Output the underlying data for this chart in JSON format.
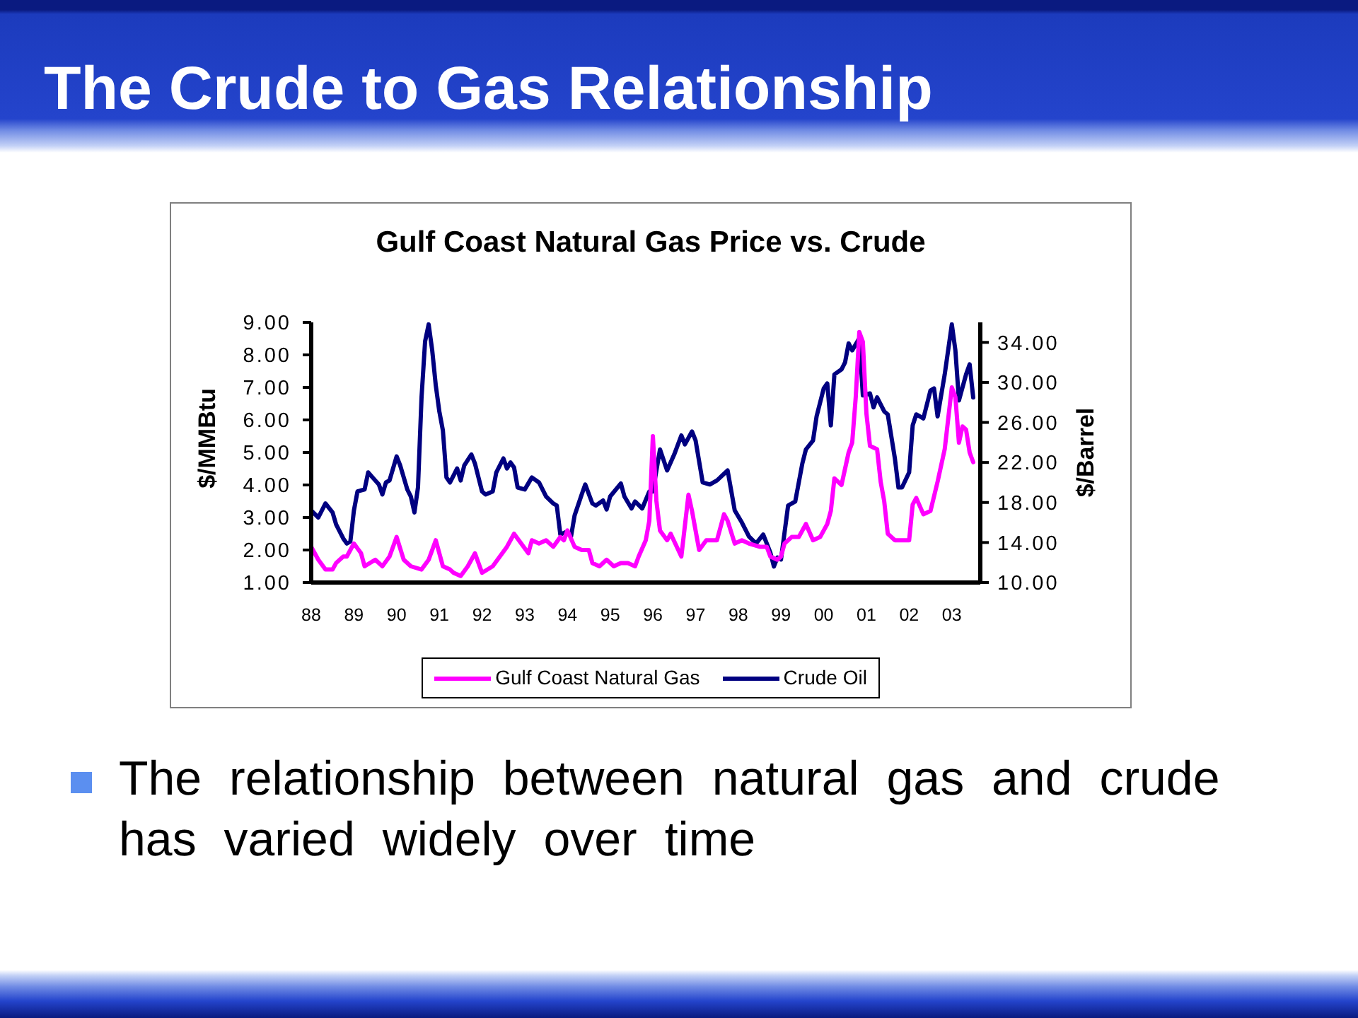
{
  "chart_data": {
    "type": "line",
    "title": "The Crude to Gas Relationship",
    "subtitle": "Gulf Coast Natural Gas Price vs. Crude",
    "ylabel": "$/MMBtu",
    "y2label": "$/Barrel",
    "annotations": [
      "The relationship between natural gas and crude has varied widely over time"
    ],
    "xlim": [
      "1988-01",
      "2003-09"
    ],
    "xticks": [
      {
        "value": "1988",
        "label": "88"
      },
      {
        "value": "1989",
        "label": "89"
      },
      {
        "value": "1990",
        "label": "90"
      },
      {
        "value": "1991",
        "label": "91"
      },
      {
        "value": "1992",
        "label": "92"
      },
      {
        "value": "1993",
        "label": "93"
      },
      {
        "value": "1994",
        "label": "94"
      },
      {
        "value": "1995",
        "label": "95"
      },
      {
        "value": "1996",
        "label": "96"
      },
      {
        "value": "1997",
        "label": "97"
      },
      {
        "value": "1998",
        "label": "98"
      },
      {
        "value": "1999",
        "label": "99"
      },
      {
        "value": "2000",
        "label": "00"
      },
      {
        "value": "2001",
        "label": "01"
      },
      {
        "value": "2002",
        "label": "02"
      },
      {
        "value": "2003",
        "label": "03"
      }
    ],
    "ylim": [
      1,
      9
    ],
    "yticks": [
      {
        "value": 1,
        "label": "1.00"
      },
      {
        "value": 2,
        "label": "2.00"
      },
      {
        "value": 3,
        "label": "3.00"
      },
      {
        "value": 4,
        "label": "4.00"
      },
      {
        "value": 5,
        "label": "5.00"
      },
      {
        "value": 6,
        "label": "6.00"
      },
      {
        "value": 7,
        "label": "7.00"
      },
      {
        "value": 8,
        "label": "8.00"
      },
      {
        "value": 9,
        "label": "9.00"
      }
    ],
    "y2lim": [
      10,
      36
    ],
    "y2ticks": [
      {
        "value": 10,
        "label": "10.00"
      },
      {
        "value": 14,
        "label": "14.00"
      },
      {
        "value": 18,
        "label": "18.00"
      },
      {
        "value": 22,
        "label": "22.00"
      },
      {
        "value": 26,
        "label": "26.00"
      },
      {
        "value": 30,
        "label": "30.00"
      },
      {
        "value": 34,
        "label": "34.00"
      }
    ],
    "legend": "bottom",
    "series": [
      {
        "name": "Gulf Coast Natural Gas",
        "color": "#ff00ff",
        "x": [
          "1988-01",
          "1988-03",
          "1988-05",
          "1988-07",
          "1988-08",
          "1988-10",
          "1988-11",
          "1989-01",
          "1989-03",
          "1989-04",
          "1989-07",
          "1989-09",
          "1989-11",
          "1990-01",
          "1990-03",
          "1990-05",
          "1990-08",
          "1990-10",
          "1990-12",
          "1991-02",
          "1991-04",
          "1991-05",
          "1991-07",
          "1991-09",
          "1991-11",
          "1992-01",
          "1992-04",
          "1992-06",
          "1992-08",
          "1992-10",
          "1992-12",
          "1993-02",
          "1993-03",
          "1993-05",
          "1993-07",
          "1993-09",
          "1993-11",
          "1993-12",
          "1994-01",
          "1994-03",
          "1994-05",
          "1994-07",
          "1994-08",
          "1994-10",
          "1994-12",
          "1995-02",
          "1995-04",
          "1995-06",
          "1995-08",
          "1995-09",
          "1995-11",
          "1995-12",
          "1996-01",
          "1996-02",
          "1996-03",
          "1996-05",
          "1996-06",
          "1996-09",
          "1996-11",
          "1996-12",
          "1997-02",
          "1997-04",
          "1997-07",
          "1997-09",
          "1997-10",
          "1997-12",
          "1998-02",
          "1998-04",
          "1998-07",
          "1998-09",
          "1998-10",
          "1998-12",
          "1999-01",
          "1999-02",
          "1999-04",
          "1999-06",
          "1999-08",
          "1999-10",
          "1999-12",
          "2000-02",
          "2000-03",
          "2000-04",
          "2000-06",
          "2000-08",
          "2000-09",
          "2000-10",
          "2000-11",
          "2000-12",
          "2001-01",
          "2001-02",
          "2001-04",
          "2001-05",
          "2001-06",
          "2001-07",
          "2001-09",
          "2001-11",
          "2002-01",
          "2002-02",
          "2002-03",
          "2002-05",
          "2002-07",
          "2002-09",
          "2002-11",
          "2003-01",
          "2003-02",
          "2003-03",
          "2003-04",
          "2003-05",
          "2003-06",
          "2003-07"
        ],
        "values": [
          2.1,
          1.7,
          1.4,
          1.4,
          1.6,
          1.8,
          1.8,
          2.2,
          1.9,
          1.5,
          1.7,
          1.5,
          1.8,
          2.4,
          1.7,
          1.5,
          1.4,
          1.7,
          2.3,
          1.5,
          1.4,
          1.3,
          1.2,
          1.5,
          1.9,
          1.3,
          1.5,
          1.8,
          2.1,
          2.5,
          2.2,
          1.9,
          2.3,
          2.2,
          2.3,
          2.1,
          2.4,
          2.3,
          2.6,
          2.1,
          2.0,
          2.0,
          1.6,
          1.5,
          1.7,
          1.5,
          1.6,
          1.6,
          1.5,
          1.8,
          2.3,
          2.9,
          5.5,
          3.5,
          2.6,
          2.3,
          2.5,
          1.8,
          3.7,
          3.2,
          2.0,
          2.3,
          2.3,
          3.1,
          2.9,
          2.2,
          2.3,
          2.2,
          2.1,
          2.1,
          1.8,
          1.7,
          1.8,
          2.2,
          2.4,
          2.4,
          2.8,
          2.3,
          2.4,
          2.8,
          3.2,
          4.2,
          4.0,
          5.0,
          5.3,
          6.7,
          8.7,
          8.4,
          6.2,
          5.2,
          5.1,
          4.1,
          3.5,
          2.5,
          2.3,
          2.3,
          2.3,
          3.4,
          3.6,
          3.1,
          3.2,
          4.1,
          5.1,
          7.0,
          6.7,
          5.3,
          5.8,
          5.7,
          5.0,
          4.7
        ]
      },
      {
        "name": "Crude Oil",
        "color": "#000080",
        "axis": "y2",
        "x": [
          "1988-01",
          "1988-03",
          "1988-05",
          "1988-07",
          "1988-08",
          "1988-10",
          "1988-11",
          "1988-12",
          "1989-01",
          "1989-02",
          "1989-04",
          "1989-05",
          "1989-07",
          "1989-08",
          "1989-09",
          "1989-10",
          "1989-11",
          "1990-01",
          "1990-02",
          "1990-04",
          "1990-05",
          "1990-06",
          "1990-07",
          "1990-08",
          "1990-09",
          "1990-10",
          "1990-11",
          "1990-12",
          "1991-01",
          "1991-02",
          "1991-03",
          "1991-04",
          "1991-05",
          "1991-06",
          "1991-07",
          "1991-08",
          "1991-10",
          "1991-11",
          "1992-01",
          "1992-02",
          "1992-04",
          "1992-05",
          "1992-07",
          "1992-08",
          "1992-09",
          "1992-10",
          "1992-11",
          "1993-01",
          "1993-03",
          "1993-05",
          "1993-07",
          "1993-09",
          "1993-10",
          "1993-11",
          "1994-01",
          "1994-02",
          "1994-03",
          "1994-05",
          "1994-06",
          "1994-08",
          "1994-09",
          "1994-11",
          "1994-12",
          "1995-01",
          "1995-04",
          "1995-05",
          "1995-07",
          "1995-08",
          "1995-10",
          "1995-12",
          "1996-01",
          "1996-03",
          "1996-05",
          "1996-07",
          "1996-09",
          "1996-10",
          "1996-12",
          "1997-01",
          "1997-03",
          "1997-05",
          "1997-07",
          "1997-10",
          "1997-12",
          "1998-02",
          "1998-04",
          "1998-06",
          "1998-08",
          "1998-10",
          "1998-11",
          "1998-12",
          "1999-01",
          "1999-03",
          "1999-05",
          "1999-07",
          "1999-08",
          "1999-10",
          "1999-11",
          "2000-01",
          "2000-02",
          "2000-03",
          "2000-04",
          "2000-06",
          "2000-07",
          "2000-08",
          "2000-09",
          "2000-11",
          "2000-12",
          "2001-02",
          "2001-03",
          "2001-04",
          "2001-06",
          "2001-07",
          "2001-09",
          "2001-10",
          "2001-11",
          "2002-01",
          "2002-02",
          "2002-03",
          "2002-05",
          "2002-07",
          "2002-08",
          "2002-09",
          "2002-11",
          "2003-01",
          "2003-02",
          "2003-03",
          "2003-05",
          "2003-06",
          "2003-07"
        ],
        "values": [
          17.2,
          16.5,
          17.9,
          17.0,
          15.8,
          14.4,
          13.9,
          14.1,
          17.2,
          19.1,
          19.3,
          21.0,
          20.2,
          19.8,
          18.8,
          20.0,
          20.2,
          22.6,
          21.7,
          19.3,
          18.6,
          17.0,
          19.5,
          28.5,
          34.1,
          35.8,
          33.2,
          29.7,
          27.1,
          25.2,
          20.5,
          20.0,
          20.7,
          21.4,
          20.2,
          21.7,
          22.8,
          21.9,
          19.1,
          18.8,
          19.1,
          21.0,
          22.4,
          21.4,
          22.0,
          21.5,
          19.5,
          19.3,
          20.5,
          20.0,
          18.6,
          17.9,
          17.7,
          14.8,
          15.1,
          14.6,
          16.7,
          18.8,
          19.8,
          17.9,
          17.7,
          18.2,
          17.3,
          18.6,
          19.9,
          18.6,
          17.4,
          18.1,
          17.4,
          19.1,
          19.1,
          23.3,
          21.2,
          22.8,
          24.7,
          23.8,
          25.1,
          24.2,
          20.0,
          19.8,
          20.2,
          21.2,
          17.2,
          16.0,
          14.6,
          13.9,
          14.8,
          13.0,
          11.6,
          12.5,
          12.3,
          17.7,
          18.1,
          21.9,
          23.3,
          24.2,
          26.6,
          29.4,
          29.9,
          25.7,
          30.8,
          31.3,
          32.0,
          33.9,
          33.2,
          34.4,
          28.7,
          28.9,
          27.5,
          28.5,
          27.1,
          26.8,
          22.4,
          19.5,
          19.5,
          21.0,
          25.7,
          26.8,
          26.4,
          29.2,
          29.4,
          26.6,
          30.8,
          35.8,
          33.2,
          28.2,
          30.8,
          31.8,
          28.5
        ]
      }
    ]
  }
}
